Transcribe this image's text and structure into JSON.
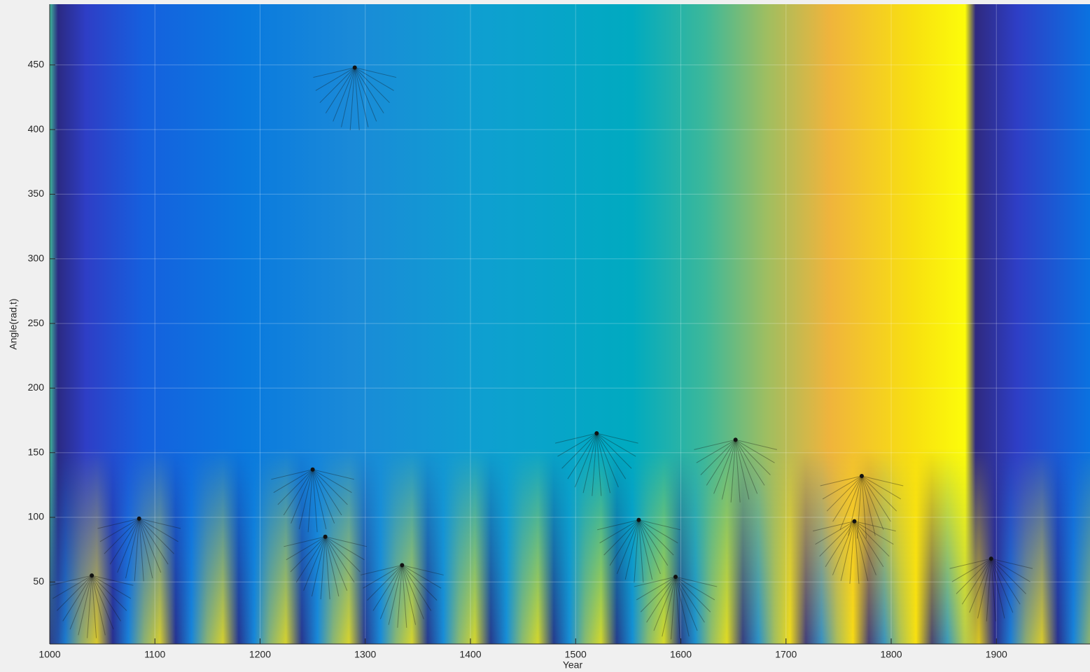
{
  "chart_data": {
    "type": "contour",
    "xlabel": "Year",
    "ylabel": "Angle(rad,t)",
    "xlim": [
      1000,
      1989
    ],
    "ylim": [
      2,
      497
    ],
    "xticks": [
      1000,
      1100,
      1200,
      1300,
      1400,
      1500,
      1600,
      1700,
      1800,
      1900
    ],
    "yticks": [
      50,
      100,
      150,
      200,
      250,
      300,
      350,
      400,
      450
    ],
    "grid": true,
    "x": [
      1040,
      1085,
      1250,
      1262,
      1290,
      1335,
      1520,
      1560,
      1595,
      1652,
      1765,
      1772,
      1895
    ],
    "values": [
      55,
      99,
      137,
      85,
      448,
      63,
      165,
      98,
      54,
      160,
      97,
      132,
      68
    ],
    "color": "#111111"
  }
}
